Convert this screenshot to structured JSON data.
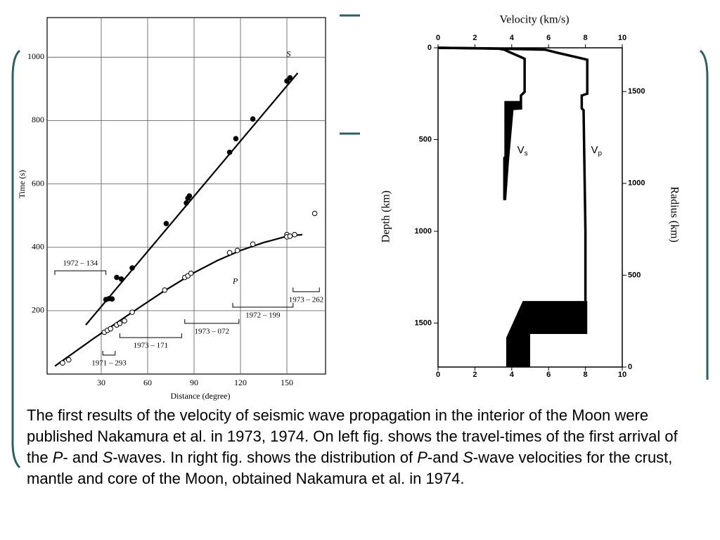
{
  "chart_data": [
    {
      "type": "scatter",
      "xlabel": "Distance (degree)",
      "ylabel": "Time (s)",
      "xlim": [
        -5,
        175
      ],
      "xticks": [
        30,
        60,
        90,
        120,
        150
      ],
      "ylim": [
        0,
        1125
      ],
      "yticks": [
        200,
        400,
        600,
        800,
        1000
      ],
      "grid": true,
      "color": "#000000",
      "series": [
        {
          "name": "S",
          "marker": "filled",
          "x": [
            33,
            35,
            37,
            40,
            43,
            50,
            72,
            85,
            86,
            87,
            113,
            117,
            128,
            150,
            152
          ],
          "values": [
            235,
            238,
            237,
            305,
            300,
            335,
            475,
            540,
            555,
            562,
            700,
            743,
            805,
            925,
            935
          ],
          "fit": {
            "x": [
              20,
              157
            ],
            "values": [
              155,
              950
            ]
          }
        },
        {
          "name": "P",
          "marker": "open",
          "x": [
            5,
            9,
            32,
            34,
            36,
            40,
            42,
            45,
            50,
            71,
            84,
            86,
            88,
            113,
            118,
            128,
            150,
            150,
            152,
            155,
            168
          ],
          "values": [
            35,
            45,
            132,
            138,
            143,
            155,
            160,
            168,
            195,
            265,
            305,
            310,
            318,
            383,
            390,
            410,
            440,
            433,
            435,
            440,
            507
          ],
          "fit": {
            "x": [
              0,
              25,
              50,
              70,
              90,
              105,
              120,
              135,
              150,
              160
            ],
            "values": [
              25,
              112,
              195,
              260,
              320,
              358,
              390,
              415,
              435,
              440
            ]
          }
        }
      ],
      "annotations": [
        {
          "text": "1972 – 134",
          "x": [
            0,
            33
          ],
          "y": 326,
          "label": "above"
        },
        {
          "text": "1973 – 171",
          "x": [
            42,
            82
          ],
          "y": 115,
          "label": "below"
        },
        {
          "text": "1971 – 293",
          "x": [
            31,
            39
          ],
          "y": 60,
          "label": "below"
        },
        {
          "text": "1973 – 072",
          "x": [
            84,
            119
          ],
          "y": 160,
          "label": "below"
        },
        {
          "text": "1972 – 199",
          "x": [
            115,
            154
          ],
          "y": 211,
          "label": "below"
        },
        {
          "text": "1973 – 262",
          "x": [
            154,
            171
          ],
          "y": 260,
          "label": "below"
        }
      ]
    },
    {
      "type": "line",
      "title": "Velocity (km/s)",
      "ylabel": "Depth (km)",
      "y2label": "Radius (km)",
      "xlim": [
        0,
        10
      ],
      "xticks": [
        0,
        2,
        4,
        6,
        8,
        10
      ],
      "ylim": [
        1740,
        0
      ],
      "yticks": [
        0,
        500,
        1000,
        1500
      ],
      "y2lim": [
        0,
        1738
      ],
      "y2ticks": [
        0,
        500,
        1000,
        1500
      ],
      "color": "#000000",
      "series": [
        {
          "label_main": "V",
          "label_sub": "s",
          "x": [
            0,
            1.5,
            3.3,
            3.6,
            3.8,
            4.6,
            4.7,
            4.7,
            4.5,
            4.5,
            3.8,
            3.8,
            3.6,
            3.6
          ],
          "values": [
            0,
            2,
            5,
            10,
            20,
            55,
            60,
            240,
            260,
            330,
            335,
            580,
            600,
            830
          ],
          "label_at": [
            4.3,
            560
          ],
          "fill": {
            "x": [
              3.6,
              4.5,
              4.5,
              4.1,
              3.85,
              3.7,
              3.6
            ],
            "values": [
              290,
              290,
              335,
              335,
              620,
              830,
              830
            ]
          }
        },
        {
          "label_main": "V",
          "label_sub": "p",
          "x": [
            0,
            2.5,
            5.8,
            6.2,
            6.4,
            7.9,
            8.1,
            8.1,
            7.8,
            7.8,
            7.9,
            8.0,
            8.0
          ],
          "values": [
            0,
            3,
            10,
            20,
            25,
            60,
            65,
            250,
            260,
            330,
            340,
            1000,
            1380
          ],
          "label_at": [
            8.3,
            560
          ],
          "fill": {
            "x": [
              4.6,
              8.1,
              8.1,
              5.0,
              5.0,
              3.7,
              3.7,
              4.6
            ],
            "values": [
              1380,
              1380,
              1560,
              1560,
              1740,
              1740,
              1580,
              1380
            ]
          }
        }
      ]
    }
  ],
  "caption": [
    {
      "text": "The first results of the velocity of seismic wave propagation in the interior of the Moon were published Nakamura et al. in 1973, 1974. On left fig. shows the travel-times of the first arrival of the ",
      "italic": false
    },
    {
      "text": "P",
      "italic": true
    },
    {
      "text": "- and ",
      "italic": false
    },
    {
      "text": "S",
      "italic": true
    },
    {
      "text": "-waves. In right fig. shows the distribution of ",
      "italic": false
    },
    {
      "text": "P",
      "italic": true
    },
    {
      "text": "-and ",
      "italic": false
    },
    {
      "text": "S",
      "italic": true
    },
    {
      "text": "-wave velocities for the crust, mantle and core of the Moon, obtained Nakamura et al. in 1974.",
      "italic": false
    }
  ]
}
